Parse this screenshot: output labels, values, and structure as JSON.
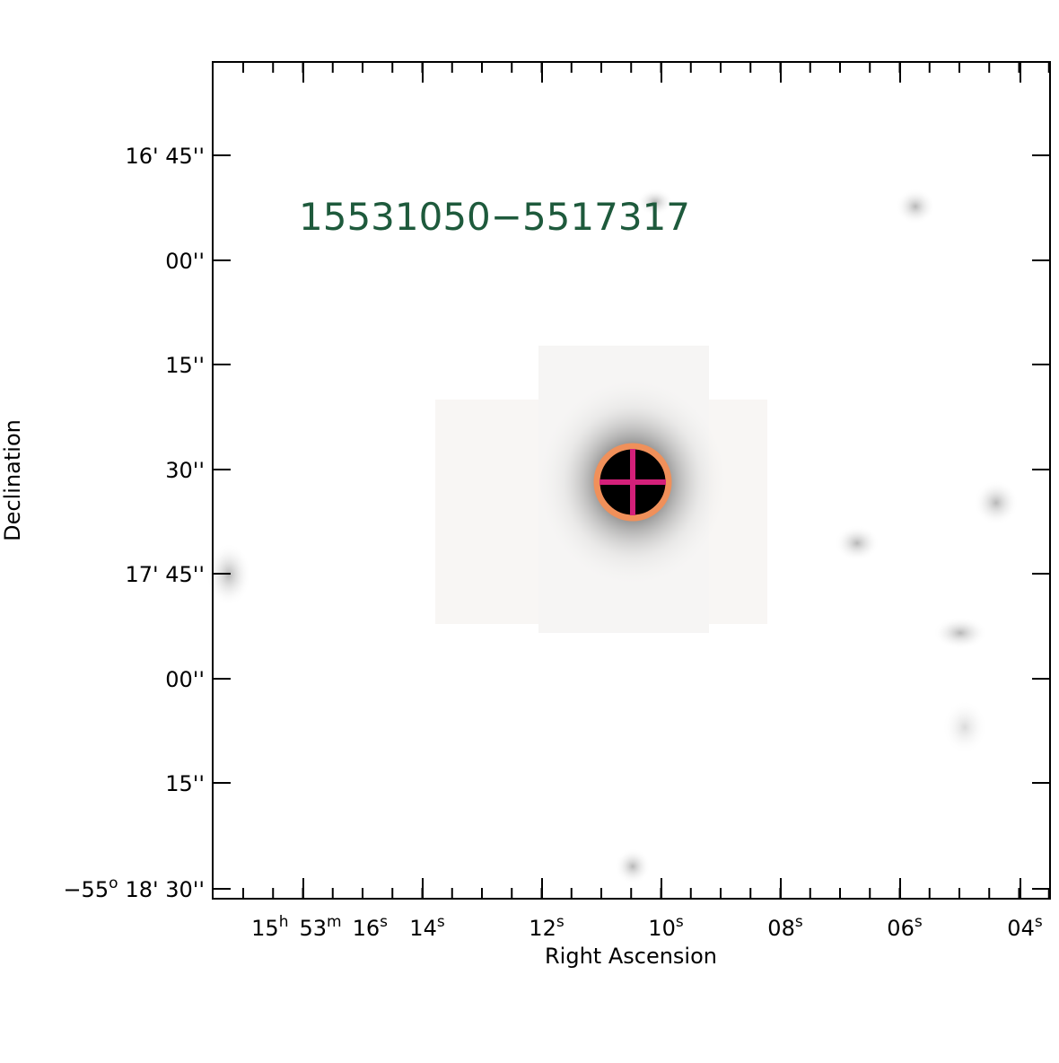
{
  "title": "15531050−5517317",
  "x_axis_label": "Right Ascension",
  "y_axis_label": "Declination",
  "x_tick_labels": [
    [
      [
        "15",
        "h"
      ],
      [
        "53",
        "m"
      ],
      [
        "16",
        "s"
      ]
    ],
    [
      [
        "14",
        "s"
      ]
    ],
    [
      [
        "12",
        "s"
      ]
    ],
    [
      [
        "10",
        "s"
      ]
    ],
    [
      [
        "08",
        "s"
      ]
    ],
    [
      [
        "06",
        "s"
      ]
    ],
    [
      [
        "04",
        "s"
      ]
    ]
  ],
  "y_tick_labels": [
    "16' 45''",
    "00''",
    "15''",
    "30''",
    "17' 45''",
    "00''",
    "15''",
    {
      "deg": "−55",
      "sup": "o",
      "text": "18' 30''"
    }
  ]
}
